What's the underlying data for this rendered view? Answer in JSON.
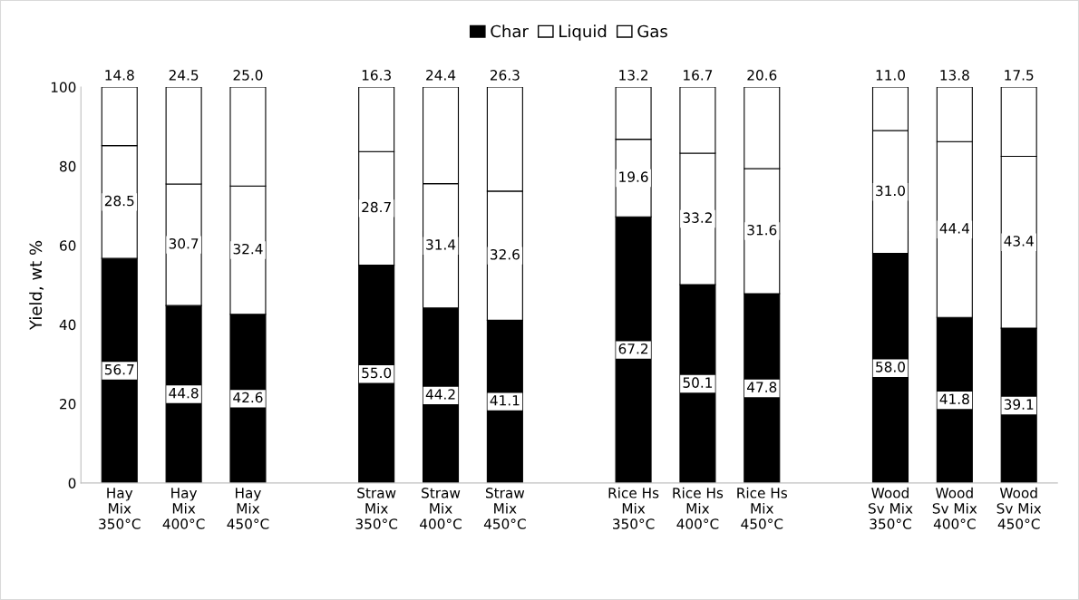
{
  "chart_data": {
    "type": "bar",
    "stacked": true,
    "ylabel": "Yield, wt %",
    "categories": [
      "Hay\nMix\n350°C",
      "Hay\nMix\n400°C",
      "Hay\nMix\n450°C",
      null,
      "Straw\nMix\n350°C",
      "Straw\nMix\n400°C",
      "Straw\nMix\n450°C",
      null,
      "Rice Hs\nMix\n350°C",
      "Rice Hs\nMix\n400°C",
      "Rice Hs\nMix\n450°C",
      null,
      "Wood\nSv Mix\n350°C",
      "Wood\nSv Mix\n400°C",
      "Wood\nSv Mix\n450°C"
    ],
    "series": [
      {
        "name": "Char",
        "color": "#000000",
        "values": [
          56.7,
          44.8,
          42.6,
          null,
          55.0,
          44.2,
          41.1,
          null,
          67.2,
          50.1,
          47.8,
          null,
          58.0,
          41.8,
          39.1
        ],
        "value_labels": [
          "56.7",
          "44.8",
          "42.6",
          null,
          "55.0",
          "44.2",
          "41.1",
          null,
          "67.2",
          "50.1",
          "47.8",
          null,
          "58.0",
          "41.8",
          "39.1"
        ]
      },
      {
        "name": "Liquid",
        "color": "#ffffff",
        "values": [
          28.5,
          30.7,
          32.4,
          null,
          28.7,
          31.4,
          32.6,
          null,
          19.6,
          33.2,
          31.6,
          null,
          31.0,
          44.4,
          43.4
        ],
        "value_labels": [
          "28.5",
          "30.7",
          "32.4",
          null,
          "28.7",
          "31.4",
          "32.6",
          null,
          "19.6",
          "33.2",
          "31.6",
          null,
          "31.0",
          "44.4",
          "43.4"
        ]
      },
      {
        "name": "Gas",
        "color": "#ffffff",
        "values": [
          14.8,
          24.5,
          25.0,
          null,
          16.3,
          24.4,
          26.3,
          null,
          13.2,
          16.7,
          20.6,
          null,
          11.0,
          13.8,
          17.5
        ],
        "value_labels": [
          "14.8",
          "24.5",
          "25.0",
          null,
          "16.3",
          "24.4",
          "26.3",
          null,
          "13.2",
          "16.7",
          "20.6",
          null,
          "11.0",
          "13.8",
          "17.5"
        ]
      }
    ],
    "ylim": [
      0,
      100
    ],
    "yticks": [
      0,
      20,
      40,
      60,
      80,
      100
    ],
    "grid": false,
    "legend": "top"
  }
}
